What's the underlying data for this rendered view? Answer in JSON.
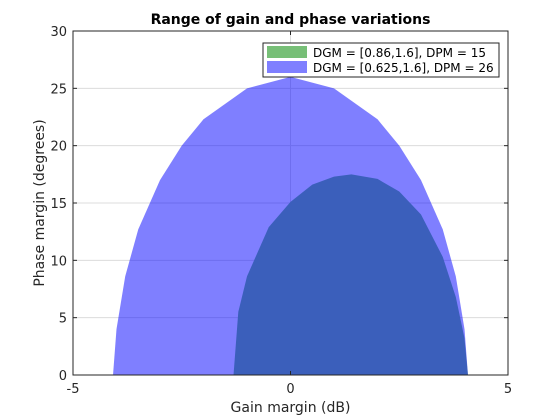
{
  "chart_data": {
    "type": "area",
    "title": "Range of gain and phase variations",
    "xlabel": "Gain margin (dB)",
    "ylabel": "Phase margin (degrees)",
    "xlim": [
      -5,
      5
    ],
    "ylim": [
      0,
      30
    ],
    "xticks": [
      -5,
      0,
      5
    ],
    "yticks": [
      0,
      5,
      10,
      15,
      20,
      25,
      30
    ],
    "grid": true,
    "legend_position": "top-right",
    "series": [
      {
        "name": "DGM = [0.86,1.6], DPM = 15",
        "color": "#77bf77",
        "opacity": 1.0,
        "x": [
          -1.31,
          -1.2,
          -1.0,
          -0.5,
          0.0,
          0.5,
          1.0,
          1.4,
          2.0,
          2.5,
          3.0,
          3.5,
          3.8,
          4.0,
          4.08
        ],
        "y": [
          0,
          5.5,
          8.6,
          12.9,
          15.1,
          16.6,
          17.3,
          17.5,
          17.1,
          16.0,
          14.0,
          10.3,
          6.8,
          3.2,
          0
        ]
      },
      {
        "name": "DGM = [0.625,1.6], DPM = 26",
        "color": "#0000ff",
        "opacity": 0.5,
        "x": [
          -4.08,
          -4.0,
          -3.8,
          -3.5,
          -3.0,
          -2.5,
          -2.0,
          -1.0,
          0.0,
          1.0,
          2.0,
          2.5,
          3.0,
          3.5,
          3.8,
          4.0,
          4.08
        ],
        "y": [
          0,
          4.0,
          8.6,
          12.7,
          17.0,
          20.0,
          22.3,
          25.0,
          26.0,
          25.0,
          22.3,
          20.0,
          17.0,
          12.7,
          8.6,
          4.0,
          0
        ]
      }
    ]
  }
}
